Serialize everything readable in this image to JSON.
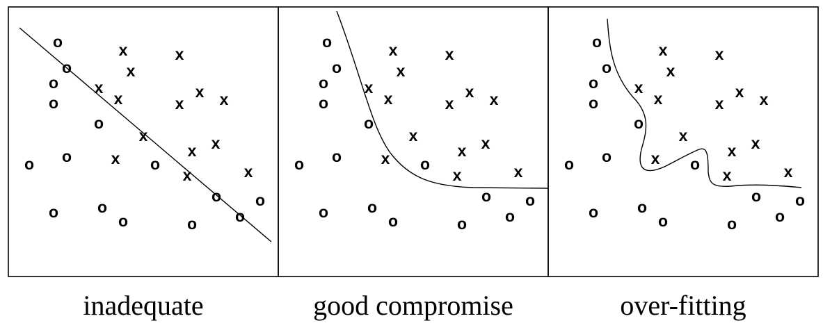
{
  "markers": {
    "class_o": "o",
    "class_x": "x"
  },
  "panels": [
    {
      "id": "inadequate",
      "caption": "inadequate",
      "o_points": [
        [
          83,
          60
        ],
        [
          96,
          97
        ],
        [
          77,
          119
        ],
        [
          77,
          148
        ],
        [
          142,
          177
        ],
        [
          42,
          236
        ],
        [
          96,
          225
        ],
        [
          223,
          236
        ],
        [
          77,
          305
        ],
        [
          147,
          298
        ],
        [
          177,
          318
        ],
        [
          276,
          322
        ],
        [
          311,
          282
        ],
        [
          345,
          311
        ],
        [
          374,
          288
        ]
      ],
      "x_points": [
        [
          177,
          72
        ],
        [
          258,
          78
        ],
        [
          188,
          102
        ],
        [
          142,
          126
        ],
        [
          170,
          142
        ],
        [
          258,
          149
        ],
        [
          287,
          132
        ],
        [
          322,
          143
        ],
        [
          206,
          195
        ],
        [
          276,
          217
        ],
        [
          310,
          206
        ],
        [
          166,
          228
        ],
        [
          269,
          252
        ],
        [
          357,
          247
        ]
      ],
      "boundary": "line"
    },
    {
      "id": "good-compromise",
      "caption": "good compromise",
      "o_points": [
        [
          470,
          60
        ],
        [
          484,
          97
        ],
        [
          465,
          119
        ],
        [
          465,
          148
        ],
        [
          530,
          177
        ],
        [
          430,
          236
        ],
        [
          484,
          225
        ],
        [
          611,
          236
        ],
        [
          465,
          305
        ],
        [
          535,
          298
        ],
        [
          565,
          318
        ],
        [
          664,
          322
        ],
        [
          699,
          282
        ],
        [
          733,
          311
        ],
        [
          762,
          288
        ]
      ],
      "x_points": [
        [
          565,
          72
        ],
        [
          646,
          78
        ],
        [
          576,
          102
        ],
        [
          530,
          126
        ],
        [
          558,
          142
        ],
        [
          646,
          149
        ],
        [
          675,
          132
        ],
        [
          710,
          143
        ],
        [
          594,
          195
        ],
        [
          664,
          217
        ],
        [
          698,
          206
        ],
        [
          554,
          228
        ],
        [
          657,
          252
        ],
        [
          745,
          247
        ]
      ],
      "boundary": "smooth"
    },
    {
      "id": "over-fitting",
      "caption": "over-fitting",
      "o_points": [
        [
          858,
          60
        ],
        [
          872,
          97
        ],
        [
          853,
          119
        ],
        [
          853,
          148
        ],
        [
          918,
          177
        ],
        [
          818,
          236
        ],
        [
          872,
          225
        ],
        [
          999,
          236
        ],
        [
          853,
          305
        ],
        [
          923,
          298
        ],
        [
          953,
          318
        ],
        [
          1052,
          322
        ],
        [
          1087,
          282
        ],
        [
          1121,
          311
        ],
        [
          1150,
          288
        ]
      ],
      "x_points": [
        [
          953,
          72
        ],
        [
          1034,
          78
        ],
        [
          964,
          102
        ],
        [
          918,
          126
        ],
        [
          946,
          142
        ],
        [
          1034,
          149
        ],
        [
          1063,
          132
        ],
        [
          1098,
          143
        ],
        [
          982,
          195
        ],
        [
          1052,
          217
        ],
        [
          1086,
          206
        ],
        [
          942,
          228
        ],
        [
          1045,
          252
        ],
        [
          1133,
          247
        ]
      ],
      "boundary": "wiggly"
    }
  ]
}
